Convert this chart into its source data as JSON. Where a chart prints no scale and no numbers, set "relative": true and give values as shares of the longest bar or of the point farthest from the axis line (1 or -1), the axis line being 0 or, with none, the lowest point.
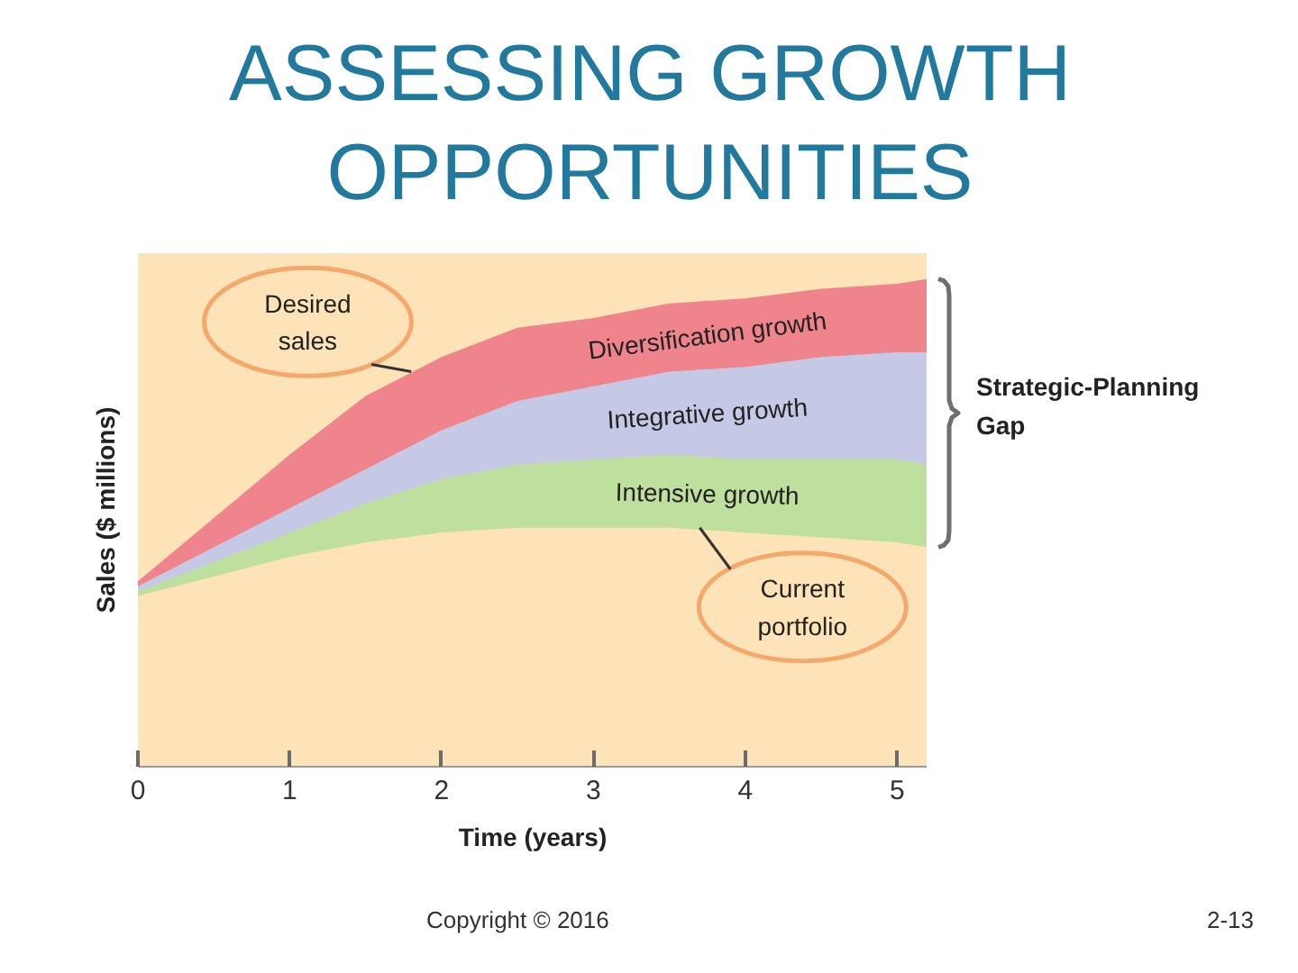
{
  "chart_data": {
    "type": "area",
    "title": "ASSESSING GROWTH\nOPPORTUNITIES",
    "xlabel": "Time (years)",
    "ylabel": "Sales ($ millions)",
    "relative": true,
    "x": [
      0,
      0.25,
      0.5,
      1,
      1.5,
      2,
      2.5,
      3,
      3.5,
      4,
      4.5,
      5,
      5.2
    ],
    "xlim": [
      0,
      5.2
    ],
    "xticks": [
      0,
      1,
      2,
      3,
      4,
      5
    ],
    "series": [
      {
        "name": "Diversification growth",
        "color": "#f0848c",
        "x": [
          0,
          1,
          1.5,
          2,
          2.5,
          3,
          3.5,
          4,
          4.5,
          5,
          5.2
        ],
        "values": [
          0.38,
          0.64,
          0.76,
          0.84,
          0.9,
          0.92,
          0.95,
          0.96,
          0.98,
          0.99,
          1.0
        ]
      },
      {
        "name": "Integrative growth",
        "color": "#c5c9e5",
        "x": [
          0,
          2,
          2.5,
          3,
          3.5,
          4,
          4.5,
          5,
          5.2
        ],
        "values": [
          0.37,
          0.69,
          0.75,
          0.78,
          0.81,
          0.82,
          0.84,
          0.85,
          0.85
        ]
      },
      {
        "name": "Intensive growth",
        "color": "#bfdf9f",
        "x": [
          0,
          1.5,
          2,
          2.5,
          3,
          3.5,
          4,
          4.5,
          5,
          5.2
        ],
        "values": [
          0.36,
          0.54,
          0.59,
          0.62,
          0.63,
          0.64,
          0.63,
          0.63,
          0.63,
          0.62
        ]
      },
      {
        "color": "#fde3b7",
        "values": [
          0.35,
          0.37,
          0.39,
          0.43,
          0.46,
          0.48,
          0.49,
          0.49,
          0.49,
          0.48,
          0.47,
          0.46,
          0.45
        ]
      }
    ],
    "annotations": [
      {
        "text": "Desired\nsales",
        "x": 1.8,
        "y": 0.81
      },
      {
        "text": "Current\nportfolio",
        "x": 3.7,
        "y": 0.49
      },
      "Strategic-Planning\nGap",
      "Copyright © 2016",
      "2-13"
    ]
  }
}
